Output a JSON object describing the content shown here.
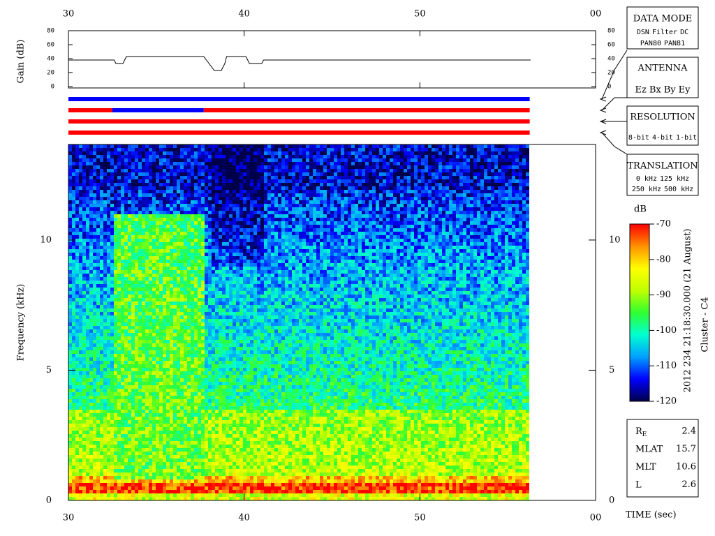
{
  "chart_data": [
    {
      "type": "line",
      "y_label": "Gain (dB)",
      "color": "#000000",
      "xlim": [
        30,
        60
      ],
      "xticks": [
        30,
        40,
        50,
        {
          "value": 60,
          "label": "00"
        }
      ],
      "ylim": [
        0,
        80
      ],
      "yticks": [
        0,
        20,
        40,
        60,
        80
      ],
      "x": [
        30,
        32.6,
        32.7,
        33.1,
        33.3,
        37.7,
        38.0,
        38.3,
        38.7,
        38.9,
        39.0,
        40.1,
        40.3,
        41.0,
        41.1,
        56.3
      ],
      "values": [
        38,
        38,
        33,
        33,
        43,
        43,
        33,
        23,
        23,
        33,
        43,
        43,
        33,
        33,
        38,
        38
      ]
    },
    {
      "type": "heatmap",
      "x_label": "TIME (sec)",
      "y_label": "Frequency (kHz)",
      "xlim": [
        30,
        60
      ],
      "xticks": [
        30,
        40,
        50,
        {
          "value": 60,
          "label": "00"
        }
      ],
      "ylim": [
        0,
        13.67
      ],
      "yticks": [
        0,
        5,
        10
      ],
      "colorbar": {
        "label": "dB",
        "lim": [
          -120,
          -70
        ],
        "ticks": [
          -70,
          -80,
          -90,
          -100,
          -110,
          -120
        ],
        "colors": [
          "#00004a",
          "#0000ff",
          "#00a0ff",
          "#00ffd0",
          "#30ff30",
          "#c0ff00",
          "#ffff00",
          "#ff9000",
          "#ff0000"
        ]
      }
    }
  ],
  "status_bars": [
    [
      {
        "start": 30,
        "end": 56.25,
        "color": "#0000ff"
      }
    ],
    [
      {
        "start": 30,
        "end": 32.5,
        "color": "#ff0000"
      },
      {
        "start": 32.5,
        "end": 37.7,
        "color": "#0000ff"
      },
      {
        "start": 37.7,
        "end": 56.25,
        "color": "#ff0000"
      }
    ],
    [
      {
        "start": 30,
        "end": 56.25,
        "color": "#ff0000"
      }
    ],
    [
      {
        "start": 30,
        "end": 56.25,
        "color": "#ff0000"
      }
    ]
  ],
  "legend_boxes": [
    {
      "title": "DATA MODE",
      "rows": [
        [
          {
            "text": "DSN",
            "color": "#ff0000"
          },
          {
            "text": "Filter",
            "color": "#00cc00"
          },
          {
            "text": "DC",
            "color": "#0000ff"
          }
        ],
        [
          {
            "text": "PAN80",
            "color": "#000000"
          },
          {
            "text": "PAN81",
            "color": "#00d0d0"
          }
        ]
      ]
    },
    {
      "title": "ANTENNA",
      "rows": [
        [
          {
            "text": "Ez",
            "color": "#ff0000"
          },
          {
            "text": "Bx",
            "color": "#00cc00"
          },
          {
            "text": "By",
            "color": "#0000ff"
          },
          {
            "text": "Ey",
            "color": "#000000"
          }
        ]
      ]
    },
    {
      "title": "RESOLUTION",
      "rows": [
        [
          {
            "text": "8-bit",
            "color": "#ff0000"
          },
          {
            "text": "4-bit",
            "color": "#00cc00"
          },
          {
            "text": "1-bit",
            "color": "#0000ff"
          }
        ]
      ]
    },
    {
      "title": "TRANSLATION",
      "rows": [
        [
          {
            "text": "0 kHz",
            "color": "#ff0000"
          },
          {
            "text": "125 kHz",
            "color": "#00cc00"
          }
        ],
        [
          {
            "text": "250 kHz",
            "color": "#0000ff"
          },
          {
            "text": "500 kHz",
            "color": "#000000"
          }
        ]
      ]
    }
  ],
  "time_stamp": "2012 234 21:18:30.000 (21 August)",
  "spacecraft": "Cluster - C4",
  "position": [
    {
      "label": "R",
      "sub": "E",
      "value": "2.4"
    },
    {
      "label": "MLAT",
      "value": "15.7"
    },
    {
      "label": "MLT",
      "value": "10.6"
    },
    {
      "label": "L",
      "value": "2.6"
    }
  ]
}
